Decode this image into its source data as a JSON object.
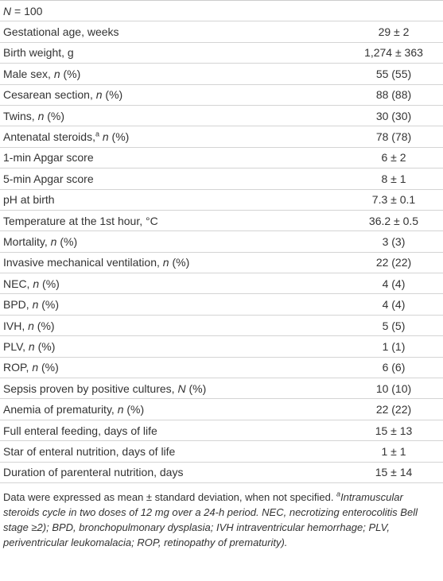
{
  "header": [
    {
      "text": "N",
      "italic": true
    },
    {
      "text": " = 100"
    }
  ],
  "table": {
    "rows": [
      {
        "label": [
          {
            "text": "Gestational age, weeks"
          }
        ],
        "value": "29 ± 2"
      },
      {
        "label": [
          {
            "text": "Birth weight, g"
          }
        ],
        "value": "1,274 ± 363"
      },
      {
        "label": [
          {
            "text": "Male sex, "
          },
          {
            "text": "n",
            "italic": true
          },
          {
            "text": " (%)"
          }
        ],
        "value": "55 (55)"
      },
      {
        "label": [
          {
            "text": "Cesarean section, "
          },
          {
            "text": "n",
            "italic": true
          },
          {
            "text": " (%)"
          }
        ],
        "value": "88 (88)"
      },
      {
        "label": [
          {
            "text": "Twins, "
          },
          {
            "text": "n",
            "italic": true
          },
          {
            "text": " (%)"
          }
        ],
        "value": "30 (30)"
      },
      {
        "label": [
          {
            "text": "Antenatal steroids,"
          },
          {
            "text": "a",
            "sup": true
          },
          {
            "text": " "
          },
          {
            "text": "n",
            "italic": true
          },
          {
            "text": " (%)"
          }
        ],
        "value": "78 (78)"
      },
      {
        "label": [
          {
            "text": "1-min Apgar score"
          }
        ],
        "value": "6 ± 2"
      },
      {
        "label": [
          {
            "text": "5-min Apgar score"
          }
        ],
        "value": "8 ± 1"
      },
      {
        "label": [
          {
            "text": "pH at birth"
          }
        ],
        "value": "7.3 ± 0.1"
      },
      {
        "label": [
          {
            "text": "Temperature at the 1st hour, °C"
          }
        ],
        "value": "36.2 ± 0.5"
      },
      {
        "label": [
          {
            "text": "Mortality, "
          },
          {
            "text": "n",
            "italic": true
          },
          {
            "text": " (%)"
          }
        ],
        "value": "3 (3)"
      },
      {
        "label": [
          {
            "text": "Invasive mechanical ventilation, "
          },
          {
            "text": "n",
            "italic": true
          },
          {
            "text": " (%)"
          }
        ],
        "value": "22 (22)"
      },
      {
        "label": [
          {
            "text": "NEC, "
          },
          {
            "text": "n",
            "italic": true
          },
          {
            "text": " (%)"
          }
        ],
        "value": "4 (4)"
      },
      {
        "label": [
          {
            "text": "BPD, "
          },
          {
            "text": "n",
            "italic": true
          },
          {
            "text": " (%)"
          }
        ],
        "value": "4 (4)"
      },
      {
        "label": [
          {
            "text": "IVH, "
          },
          {
            "text": "n",
            "italic": true
          },
          {
            "text": " (%)"
          }
        ],
        "value": "5 (5)"
      },
      {
        "label": [
          {
            "text": "PLV, "
          },
          {
            "text": "n",
            "italic": true
          },
          {
            "text": " (%)"
          }
        ],
        "value": "1 (1)"
      },
      {
        "label": [
          {
            "text": "ROP, "
          },
          {
            "text": "n",
            "italic": true
          },
          {
            "text": " (%)"
          }
        ],
        "value": "6 (6)"
      },
      {
        "label": [
          {
            "text": "Sepsis proven by positive cultures, "
          },
          {
            "text": "N",
            "italic": true
          },
          {
            "text": " (%)"
          }
        ],
        "value": "10 (10)"
      },
      {
        "label": [
          {
            "text": "Anemia of prematurity, "
          },
          {
            "text": "n",
            "italic": true
          },
          {
            "text": " (%)"
          }
        ],
        "value": "22 (22)"
      },
      {
        "label": [
          {
            "text": "Full enteral feeding, days of life"
          }
        ],
        "value": "15 ± 13"
      },
      {
        "label": [
          {
            "text": "Star of enteral nutrition, days of life"
          }
        ],
        "value": "1 ± 1"
      },
      {
        "label": [
          {
            "text": "Duration of parenteral nutrition, days"
          }
        ],
        "value": "15 ± 14"
      }
    ]
  },
  "footnote": [
    {
      "text": "Data were expressed as mean ± standard deviation, when not specified. "
    },
    {
      "text": "a",
      "sup": true,
      "italic": true
    },
    {
      "text": "Intramuscular steroids cycle in two doses of 12 mg over a 24-h period. NEC, necrotizing enterocolitis Bell stage ≥2); BPD, bronchopulmonary dysplasia; IVH intraventricular hemorrhage; PLV, periventricular leukomalacia; ROP, retinopathy of prematurity).",
      "italic": true
    }
  ]
}
